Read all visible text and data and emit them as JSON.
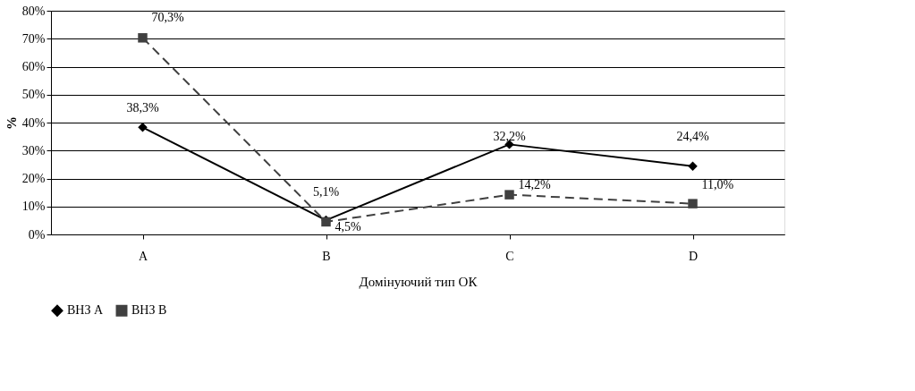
{
  "chart_data": {
    "type": "line",
    "xlabel": "Домінуючий тип ОК",
    "ylabel": "%",
    "categories": [
      "A",
      "B",
      "C",
      "D"
    ],
    "series": [
      {
        "name": "ВНЗ А",
        "color": "#000000",
        "marker": "diamond",
        "line_style": "solid",
        "values": [
          38.3,
          5.1,
          32.2,
          24.4
        ],
        "value_labels": [
          "38,3%",
          "5,1%",
          "32,2%",
          "24,4%"
        ]
      },
      {
        "name": "ВНЗ В",
        "color": "#404040",
        "marker": "square",
        "line_style": "dashed",
        "values": [
          70.3,
          4.5,
          14.2,
          11.0
        ],
        "value_labels": [
          "70,3%",
          "4,5%",
          "14,2%",
          "11,0%"
        ]
      }
    ],
    "ylim": [
      0,
      80
    ],
    "yticks": [
      {
        "value": 0,
        "label": "0%"
      },
      {
        "value": 10,
        "label": "10%"
      },
      {
        "value": 20,
        "label": "20%"
      },
      {
        "value": 30,
        "label": "30%"
      },
      {
        "value": 40,
        "label": "40%"
      },
      {
        "value": 50,
        "label": "50%"
      },
      {
        "value": 60,
        "label": "60%"
      },
      {
        "value": 70,
        "label": "70%"
      },
      {
        "value": 80,
        "label": "80%"
      }
    ],
    "grid": "y",
    "legend": "bottom"
  }
}
